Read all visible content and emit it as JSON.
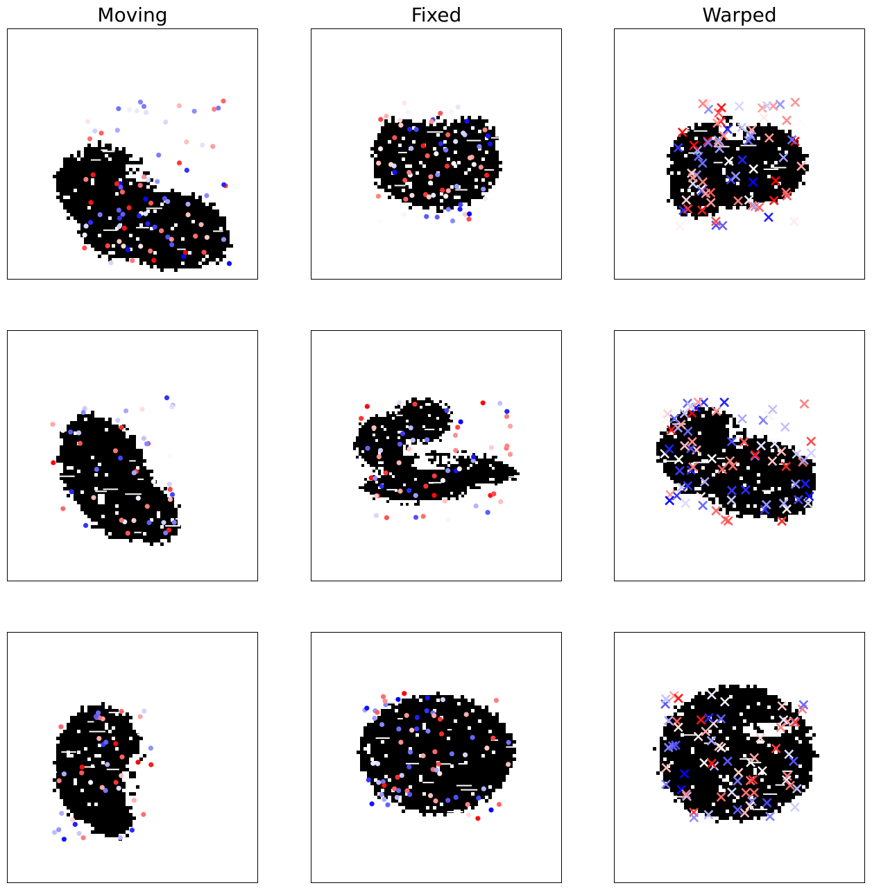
{
  "figure": {
    "columns": [
      {
        "title": "Moving"
      },
      {
        "title": "Fixed"
      },
      {
        "title": "Warped"
      }
    ]
  },
  "colors": {
    "tissue": "#000000",
    "colormap": "bwr",
    "low": "#0000ff",
    "mid": "#ffffff",
    "high": "#ff0000",
    "frame": "#000000"
  },
  "markers": {
    "moving": "circle",
    "fixed": "circle",
    "warped": "x"
  },
  "icons": {
    "tissue_mask": "black-tissue-blob",
    "landmark": "colored-landmark-point"
  }
}
